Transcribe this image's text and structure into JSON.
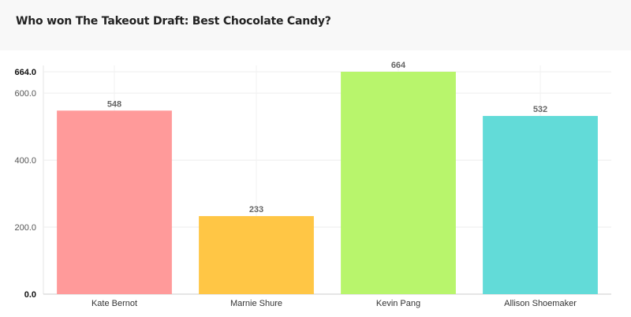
{
  "page": {
    "title": "Who won The Takeout Draft: Best Chocolate Candy?"
  },
  "chart_data": {
    "type": "bar",
    "title": "Who won The Takeout Draft: Best Chocolate Candy?",
    "categories": [
      "Kate Bernot",
      "Marnie Shure",
      "Kevin Pang",
      "Allison Shoemaker"
    ],
    "values": [
      548,
      233,
      664,
      532
    ],
    "data_labels": [
      "548",
      "233",
      "664",
      "532"
    ],
    "colors": [
      "#ff9a9a",
      "#ffc645",
      "#b8f56c",
      "#62dbd8"
    ],
    "ylim": [
      0,
      664
    ],
    "yticks": [
      {
        "value": 0,
        "label": "0.0",
        "bold": true
      },
      {
        "value": 200,
        "label": "200.0",
        "bold": false
      },
      {
        "value": 400,
        "label": "400.0",
        "bold": false
      },
      {
        "value": 600,
        "label": "600.0",
        "bold": false
      },
      {
        "value": 664,
        "label": "664.0",
        "bold": true
      }
    ],
    "xlabel": "",
    "ylabel": "",
    "grid": true,
    "legend": "none"
  }
}
